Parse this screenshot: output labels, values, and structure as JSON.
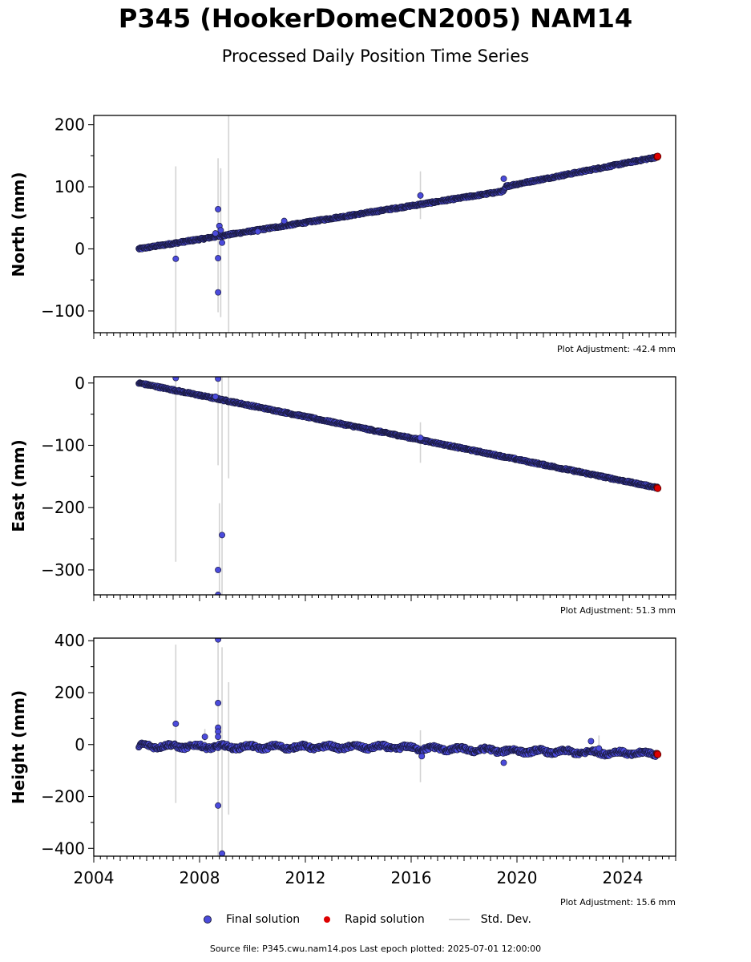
{
  "title": "P345 (HookerDomeCN2005) NAM14",
  "subtitle": "Processed Daily Position Time Series",
  "legend": {
    "final": "Final solution",
    "rapid": "Rapid solution",
    "std": "Std. Dev."
  },
  "source": "Source file: P345.cwu.nam14.pos  Last epoch plotted: 2025-07-01 12:00:00",
  "colors": {
    "final": "#4b4bdc",
    "final_edge": "#1a1a40",
    "rapid": "#dd0000",
    "std": "#d3d3d3"
  },
  "chart_data": [
    {
      "type": "scatter",
      "ylabel": "North (mm)",
      "adjustment": "Plot Adjustment: -42.4 mm",
      "xlim": [
        2004.0,
        2026.0
      ],
      "ylim": [
        -135,
        215
      ],
      "yticks": [
        -100,
        0,
        100,
        200
      ],
      "trend": [
        [
          2005.7,
          0
        ],
        [
          2019.5,
          93
        ],
        [
          2019.6,
          101
        ],
        [
          2025.3,
          148
        ]
      ],
      "noise": 2,
      "outliers": [
        [
          2007.1,
          -16
        ],
        [
          2008.7,
          -70
        ],
        [
          2008.7,
          -15
        ],
        [
          2008.7,
          64
        ],
        [
          2008.75,
          37
        ],
        [
          2008.8,
          30
        ],
        [
          2008.85,
          10
        ],
        [
          2008.6,
          25
        ],
        [
          2010.2,
          28
        ],
        [
          2011.2,
          45
        ],
        [
          2016.35,
          86
        ],
        [
          2019.5,
          113
        ]
      ],
      "errorbars": [
        [
          2007.1,
          -135,
          133
        ],
        [
          2008.7,
          -102,
          146
        ],
        [
          2008.8,
          -110,
          130
        ],
        [
          2009.1,
          -135,
          215
        ],
        [
          2016.35,
          48,
          125
        ]
      ],
      "rapid": [
        [
          2025.3,
          148
        ],
        [
          2025.32,
          149
        ]
      ]
    },
    {
      "type": "scatter",
      "ylabel": "East (mm)",
      "adjustment": "Plot Adjustment: 51.3 mm",
      "xlim": [
        2004.0,
        2026.0
      ],
      "ylim": [
        -340,
        10
      ],
      "yticks": [
        -300,
        -200,
        -100,
        0
      ],
      "trend": [
        [
          2005.7,
          0
        ],
        [
          2025.3,
          -168
        ]
      ],
      "noise": 2,
      "outliers": [
        [
          2007.1,
          8
        ],
        [
          2008.7,
          7
        ],
        [
          2008.7,
          -300
        ],
        [
          2008.7,
          -340
        ],
        [
          2008.85,
          -244
        ],
        [
          2008.6,
          -22
        ],
        [
          2016.35,
          -88
        ]
      ],
      "errorbars": [
        [
          2007.1,
          -287,
          10
        ],
        [
          2008.7,
          -132,
          10
        ],
        [
          2008.75,
          -340,
          -193
        ],
        [
          2008.85,
          -340,
          10
        ],
        [
          2009.1,
          -153,
          10
        ],
        [
          2016.35,
          -128,
          -63
        ]
      ],
      "rapid": [
        [
          2025.3,
          -168
        ],
        [
          2025.32,
          -169
        ]
      ]
    },
    {
      "type": "scatter",
      "ylabel": "Height (mm)",
      "adjustment": "Plot Adjustment: 15.6 mm",
      "xlim": [
        2004.0,
        2026.0
      ],
      "ylim": [
        -430,
        410
      ],
      "yticks": [
        -400,
        -200,
        0,
        200,
        400
      ],
      "trend": [
        [
          2005.7,
          -5
        ],
        [
          2010,
          -10
        ],
        [
          2015,
          -10
        ],
        [
          2020,
          -25
        ],
        [
          2025.3,
          -35
        ]
      ],
      "noise": 10,
      "outliers": [
        [
          2007.1,
          80
        ],
        [
          2008.2,
          30
        ],
        [
          2008.7,
          405
        ],
        [
          2008.7,
          160
        ],
        [
          2008.7,
          65
        ],
        [
          2008.7,
          50
        ],
        [
          2008.7,
          30
        ],
        [
          2008.7,
          -235
        ],
        [
          2008.85,
          -420
        ],
        [
          2016.4,
          -45
        ],
        [
          2019.5,
          -70
        ],
        [
          2022.8,
          13
        ],
        [
          2023.1,
          -15
        ]
      ],
      "errorbars": [
        [
          2007.1,
          -225,
          385
        ],
        [
          2008.2,
          5,
          60
        ],
        [
          2008.7,
          -430,
          410
        ],
        [
          2008.85,
          -430,
          375
        ],
        [
          2009.1,
          -270,
          240
        ],
        [
          2016.35,
          -145,
          55
        ],
        [
          2023.1,
          -50,
          35
        ]
      ],
      "rapid": [
        [
          2025.3,
          -35
        ],
        [
          2025.32,
          -38
        ]
      ]
    }
  ],
  "xaxis": {
    "major_ticks": [
      2004,
      2008,
      2012,
      2016,
      2020,
      2024
    ],
    "minor_step_years": 0.25
  }
}
